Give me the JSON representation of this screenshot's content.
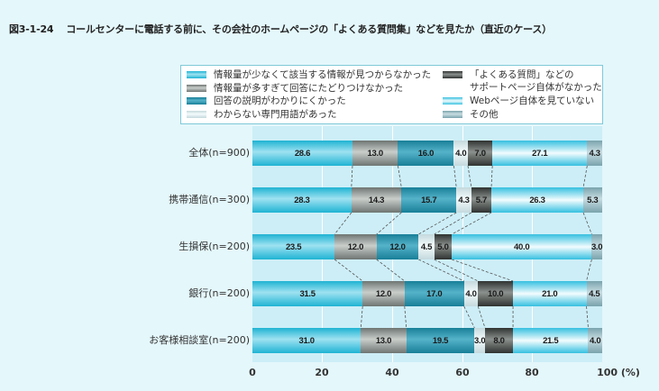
{
  "title": {
    "figure_no": "図3-1-24",
    "text": "コールセンターに電話する前に、その会社のホームページの「よくある質問集」などを見たか（直近のケース）"
  },
  "chart_data": {
    "type": "bar",
    "orientation": "horizontal",
    "stacked": true,
    "title": "コールセンターに電話する前に、その会社のホームページの「よくある質問集」などを見たか（直近のケース）",
    "xlabel": "(%)",
    "ylabel": "",
    "xlim": [
      0,
      100
    ],
    "xticks": [
      "0",
      "20",
      "40",
      "60",
      "80",
      "100 (%)"
    ],
    "grid": true,
    "legend_position": "top",
    "categories": [
      "全体(n=900)",
      "携帯通信(n=300)",
      "生損保(n=200)",
      "銀行(n=200)",
      "お客様相談室(n=200)"
    ],
    "series": [
      {
        "name": "情報量が少なくて該当する情報が見つからなかった",
        "color": "#1fb3d3",
        "values": [
          28.6,
          28.3,
          23.5,
          31.5,
          31.0
        ]
      },
      {
        "name": "情報量が多すぎて回答にたどりつけなかった",
        "color": "#8f9793",
        "values": [
          13.0,
          14.3,
          12.0,
          12.0,
          13.0
        ]
      },
      {
        "name": "回答の説明がわかりにくかった",
        "color": "#2a93ad",
        "values": [
          16.0,
          15.7,
          12.0,
          17.0,
          19.5
        ]
      },
      {
        "name": "わからない専門用語があった",
        "color": "#dcebee",
        "values": [
          4.0,
          4.3,
          4.5,
          4.0,
          3.0
        ]
      },
      {
        "name": "「よくある質問」などのサポートページ自体がなかった",
        "color": "#4a4f4c",
        "values": [
          7.0,
          5.7,
          5.0,
          10.0,
          8.0
        ]
      },
      {
        "name": "Webページ自体を見ていない",
        "color": "#7fd8ee",
        "values": [
          27.1,
          26.3,
          40.0,
          21.0,
          21.5
        ]
      },
      {
        "name": "その他",
        "color": "#93b8c1",
        "values": [
          4.3,
          5.3,
          3.0,
          4.5,
          4.0
        ]
      }
    ]
  },
  "legend": {
    "col1": [
      "情報量が少なくて該当する情報が見つからなかった",
      "情報量が多すぎて回答にたどりつけなかった",
      "回答の説明がわかりにくかった",
      "わからない専門用語があった"
    ],
    "col2_line1": "「よくある質問」などの",
    "col2_line2": "サポートページ自体がなかった",
    "col2": [
      "Webページ自体を見ていない",
      "その他"
    ]
  },
  "rows": [
    {
      "label": "全体(n=900)",
      "values": [
        "28.6",
        "13.0",
        "16.0",
        "4.0",
        "7.0",
        "27.1",
        "4.3"
      ]
    },
    {
      "label": "携帯通信(n=300)",
      "values": [
        "28.3",
        "14.3",
        "15.7",
        "4.3",
        "5.7",
        "26.3",
        "5.3"
      ]
    },
    {
      "label": "生損保(n=200)",
      "values": [
        "23.5",
        "12.0",
        "12.0",
        "4.5",
        "5.0",
        "40.0",
        "3.0"
      ]
    },
    {
      "label": "銀行(n=200)",
      "values": [
        "31.5",
        "12.0",
        "17.0",
        "4.0",
        "10.0",
        "21.0",
        "4.5"
      ]
    },
    {
      "label": "お客様相談室(n=200)",
      "values": [
        "31.0",
        "13.0",
        "19.5",
        "3.0",
        "8.0",
        "21.5",
        "4.0"
      ]
    }
  ],
  "axis": {
    "ticks": [
      "0",
      "20",
      "40",
      "60",
      "80",
      "100 (%)"
    ]
  }
}
